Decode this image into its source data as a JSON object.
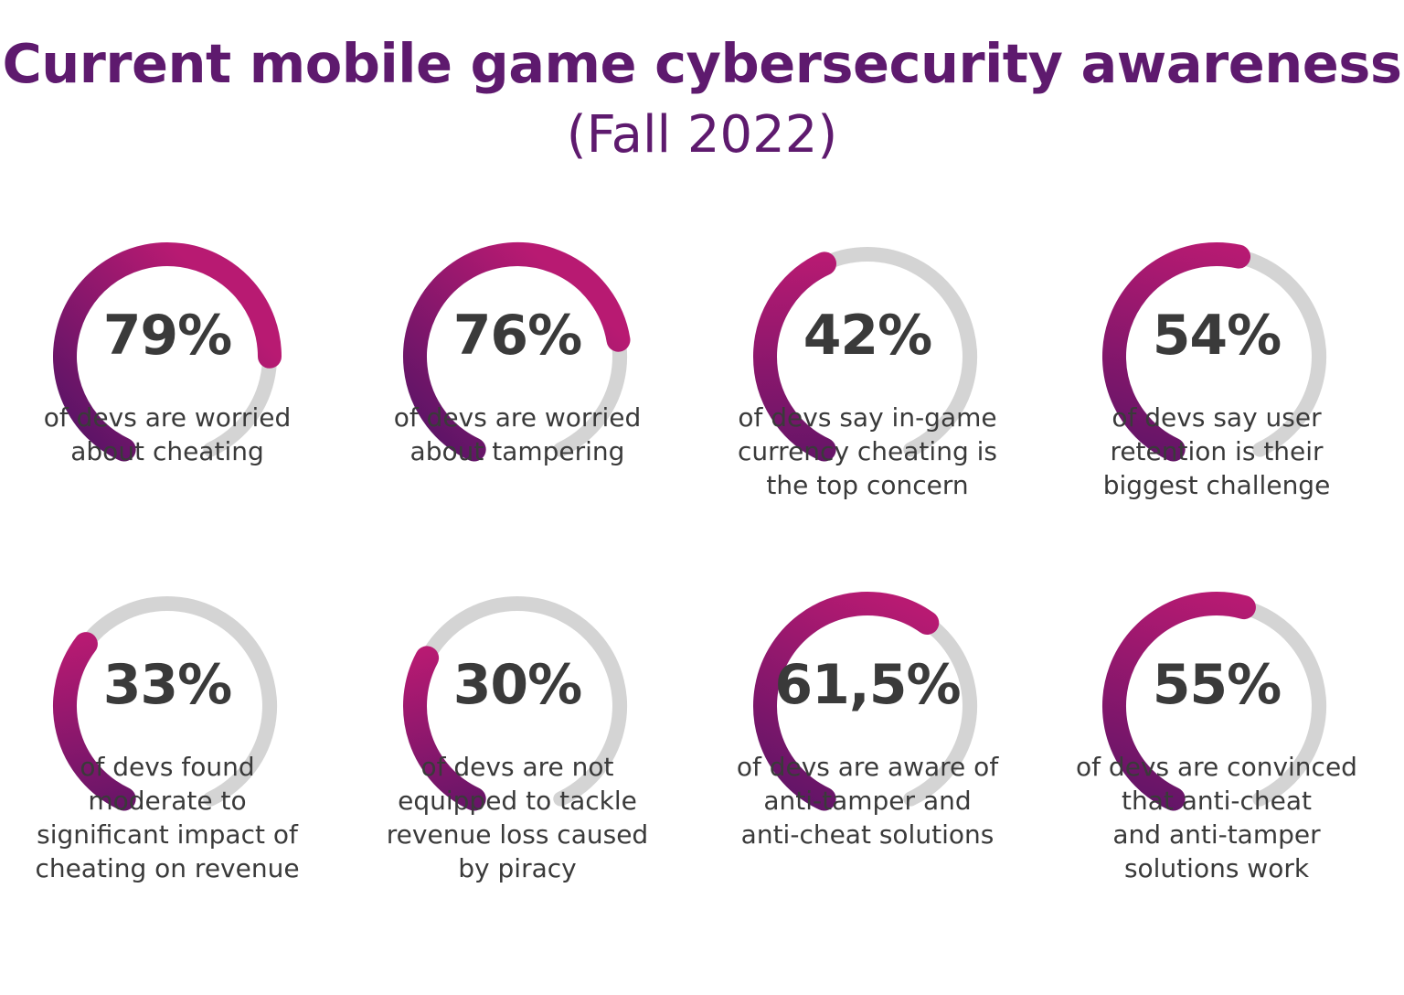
{
  "title": "Current mobile game cybersecurity awareness",
  "subtitle": "(Fall 2022)",
  "colors": {
    "title": "#5e1a6e",
    "track": "#d4d4d4",
    "gradient_start": "#5a1466",
    "gradient_end": "#b81a72",
    "text": "#3a3a3a"
  },
  "chart_data": {
    "type": "gauge",
    "title": "Current mobile game cybersecurity awareness",
    "subtitle": "(Fall 2022)",
    "items": [
      {
        "value": 79,
        "label": "79%",
        "desc": [
          "of devs are worried",
          "about cheating"
        ]
      },
      {
        "value": 76,
        "label": "76%",
        "desc": [
          "of devs are worried",
          "about tampering"
        ]
      },
      {
        "value": 42,
        "label": "42%",
        "desc": [
          "of devs say in-game",
          "currency cheating is",
          "the top concern"
        ]
      },
      {
        "value": 54,
        "label": "54%",
        "desc": [
          "of devs say user",
          "retention is their",
          "biggest challenge"
        ]
      },
      {
        "value": 33,
        "label": "33%",
        "desc": [
          "of devs found",
          "moderate to",
          "significant impact of",
          "cheating on revenue"
        ]
      },
      {
        "value": 30,
        "label": "30%",
        "desc": [
          "of devs are not",
          "equipped to tackle",
          "revenue loss caused",
          "by piracy"
        ]
      },
      {
        "value": 61.5,
        "label": "61,5%",
        "desc": [
          "of devs are aware of",
          "anti-tamper and",
          "anti-cheat solutions"
        ]
      },
      {
        "value": 55,
        "label": "55%",
        "desc": [
          "of devs are convinced",
          "that anti-cheat",
          "and anti-tamper",
          "solutions work"
        ]
      }
    ]
  }
}
